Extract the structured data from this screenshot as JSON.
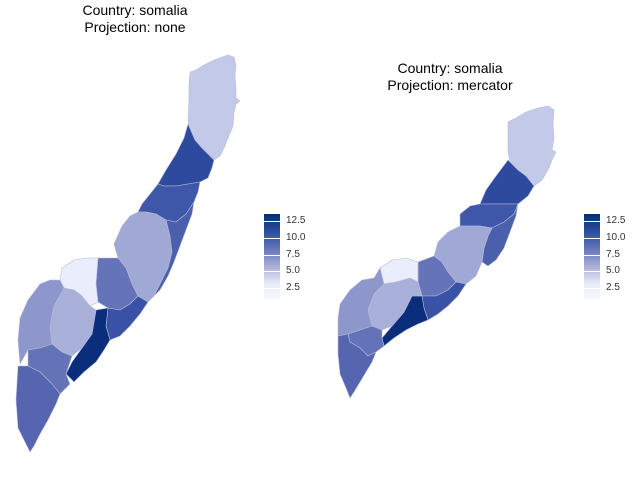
{
  "panels": [
    {
      "title_line1": "Country: somalia",
      "title_line2": "Projection: none"
    },
    {
      "title_line1": "Country: somalia",
      "title_line2": "Projection: mercator"
    }
  ],
  "legend": {
    "ticks": [
      "12.5",
      "10.0",
      "7.5",
      "5.0",
      "2.5"
    ]
  },
  "colors": {
    "low": "#f8f9ff",
    "high": "#08306b"
  }
}
